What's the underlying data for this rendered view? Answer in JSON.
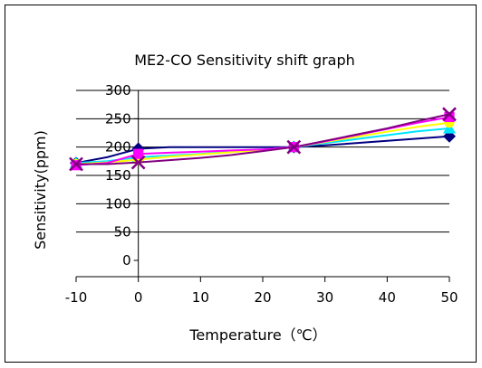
{
  "chart_data": {
    "type": "line",
    "title": "ME2-CO Sensitivity shift graph",
    "xlabel": "Temperature（℃）",
    "ylabel": "Sensitivity(ppm)",
    "xlim": [
      -10,
      50
    ],
    "ylim": [
      0,
      300
    ],
    "x_ticks": [
      -10,
      0,
      10,
      20,
      30,
      40,
      50
    ],
    "y_ticks": [
      0,
      50,
      100,
      150,
      200,
      250,
      300
    ],
    "grid": "horizontal",
    "series": [
      {
        "color": "#000080",
        "marker": "diamond",
        "points": [
          [
            -10,
            172
          ],
          [
            -5,
            182
          ],
          [
            0,
            197
          ],
          [
            5,
            200
          ],
          [
            10,
            200
          ],
          [
            15,
            200
          ],
          [
            20,
            200
          ],
          [
            25,
            200
          ],
          [
            30,
            203
          ],
          [
            35,
            207
          ],
          [
            40,
            211
          ],
          [
            45,
            215
          ],
          [
            50,
            219
          ]
        ]
      },
      {
        "color": "#00e5ff",
        "marker": "triangle",
        "points": [
          [
            -10,
            172
          ],
          [
            -5,
            175
          ],
          [
            0,
            182
          ],
          [
            5,
            185
          ],
          [
            10,
            188
          ],
          [
            15,
            192
          ],
          [
            20,
            196
          ],
          [
            25,
            200
          ],
          [
            30,
            207
          ],
          [
            35,
            214
          ],
          [
            40,
            221
          ],
          [
            45,
            228
          ],
          [
            50,
            233
          ]
        ]
      },
      {
        "color": "#ffff00",
        "marker": "circle",
        "points": [
          [
            -10,
            170
          ],
          [
            -5,
            173
          ],
          [
            0,
            178
          ],
          [
            5,
            183
          ],
          [
            10,
            187
          ],
          [
            15,
            191
          ],
          [
            20,
            195
          ],
          [
            25,
            200
          ],
          [
            30,
            209
          ],
          [
            35,
            218
          ],
          [
            40,
            227
          ],
          [
            45,
            236
          ],
          [
            50,
            243
          ]
        ]
      },
      {
        "color": "#ff00ff",
        "marker": "square",
        "points": [
          [
            -10,
            168
          ],
          [
            -5,
            172
          ],
          [
            0,
            188
          ],
          [
            5,
            190
          ],
          [
            10,
            192
          ],
          [
            15,
            194
          ],
          [
            20,
            196
          ],
          [
            25,
            200
          ],
          [
            30,
            210
          ],
          [
            35,
            221
          ],
          [
            40,
            232
          ],
          [
            45,
            243
          ],
          [
            50,
            253
          ]
        ]
      },
      {
        "color": "#800080",
        "marker": "x",
        "points": [
          [
            -10,
            170
          ],
          [
            -5,
            170
          ],
          [
            0,
            173
          ],
          [
            5,
            177
          ],
          [
            10,
            181
          ],
          [
            15,
            186
          ],
          [
            20,
            193
          ],
          [
            25,
            200
          ],
          [
            30,
            211
          ],
          [
            35,
            222
          ],
          [
            40,
            233
          ],
          [
            45,
            246
          ],
          [
            50,
            258
          ]
        ]
      }
    ]
  }
}
